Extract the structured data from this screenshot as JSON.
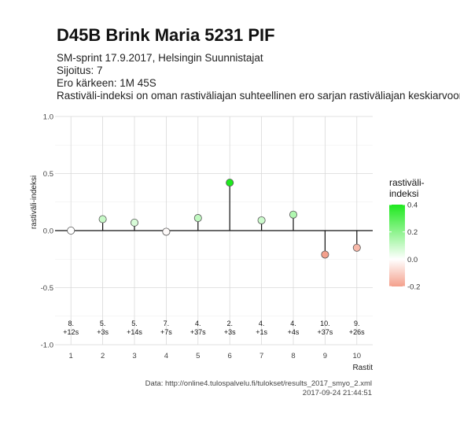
{
  "header": {
    "title": "D45B Brink Maria 5231 PIF",
    "subtitle_lines": [
      "SM-sprint 17.9.2017, Helsingin Suunnistajat",
      "Sijoitus: 7",
      "Ero kärkeen: 1M 45S",
      "Rastiväli-indeksi on oman rastiväliajan suhteellinen ero sarjan rastiväliajan keskiarvoon"
    ]
  },
  "footer": {
    "source": "Data: http://online4.tulospalvelu.fi/tulokset/results_2017_smyo_2.xml",
    "timestamp": "2017-09-24 21:44:51"
  },
  "chart_data": {
    "type": "scatter",
    "xlabel": "Rastit",
    "ylabel": "rastiväli-indeksi",
    "ylim": [
      -1.0,
      1.0
    ],
    "xlim": [
      0.5,
      10.5
    ],
    "yticks": [
      -1.0,
      -0.5,
      0.0,
      0.5,
      1.0
    ],
    "ytick_labels": [
      "-1.0",
      "-0.5",
      "0.0",
      "0.5",
      "1.0"
    ],
    "xticks": [
      1,
      2,
      3,
      4,
      5,
      6,
      7,
      8,
      9,
      10
    ],
    "grid": true,
    "points": [
      {
        "x": 1,
        "y": 0.0,
        "rank": "8.",
        "diff": "+12s"
      },
      {
        "x": 2,
        "y": 0.1,
        "rank": "5.",
        "diff": "+3s"
      },
      {
        "x": 3,
        "y": 0.07,
        "rank": "5.",
        "diff": "+14s"
      },
      {
        "x": 4,
        "y": -0.01,
        "rank": "7.",
        "diff": "+7s"
      },
      {
        "x": 5,
        "y": 0.11,
        "rank": "4.",
        "diff": "+37s"
      },
      {
        "x": 6,
        "y": 0.42,
        "rank": "2.",
        "diff": "+3s"
      },
      {
        "x": 7,
        "y": 0.09,
        "rank": "4.",
        "diff": "+1s"
      },
      {
        "x": 8,
        "y": 0.14,
        "rank": "4.",
        "diff": "+4s"
      },
      {
        "x": 9,
        "y": -0.21,
        "rank": "10.",
        "diff": "+37s"
      },
      {
        "x": 10,
        "y": -0.15,
        "rank": "9.",
        "diff": "+26s"
      }
    ],
    "legend": {
      "title_lines": [
        "rastiväli-",
        "indeksi"
      ],
      "placement": "right",
      "range": [
        -0.2,
        0.4
      ],
      "ticks": [
        0.4,
        0.2,
        0.0,
        -0.2
      ],
      "tick_labels": [
        "0.4",
        "0.2",
        "0.0",
        "-0.2"
      ],
      "colors": {
        "low": "#f4a08c",
        "mid": "#ffffff",
        "high": "#1ee81e"
      }
    }
  }
}
